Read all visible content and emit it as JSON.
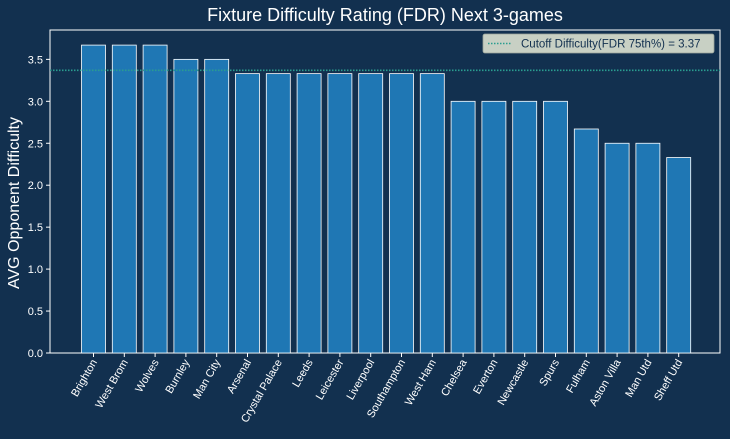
{
  "chart_data": {
    "type": "bar",
    "title": "Fixture Difficulty Rating (FDR) Next 3-games",
    "xlabel": "",
    "ylabel": "AVG Opponent Difficulty",
    "ylim": [
      0,
      3.85
    ],
    "yticks": [
      0.0,
      0.5,
      1.0,
      1.5,
      2.0,
      2.5,
      3.0,
      3.5
    ],
    "ytick_labels": [
      "0.0",
      "0.5",
      "1.0",
      "1.5",
      "2.0",
      "2.5",
      "3.0",
      "3.5"
    ],
    "grid": false,
    "categories": [
      "Brighton",
      "West Brom",
      "Wolves",
      "Burnley",
      "Man City",
      "Arsenal",
      "Crystal Palace",
      "Leeds",
      "Leicester",
      "Liverpool",
      "Southampton",
      "West Ham",
      "Chelsea",
      "Everton",
      "Newcastle",
      "Spurs",
      "Fulham",
      "Aston Villa",
      "Man Utd",
      "Sheff Utd"
    ],
    "values": [
      3.67,
      3.67,
      3.67,
      3.5,
      3.5,
      3.33,
      3.33,
      3.33,
      3.33,
      3.33,
      3.33,
      3.33,
      3.0,
      3.0,
      3.0,
      3.0,
      2.67,
      2.5,
      2.5,
      2.33
    ],
    "cutoff": {
      "value": 3.37,
      "label": "Cutoff Difficulty(FDR 75th%) = 3.37"
    },
    "legend_placement": "top-right",
    "colors": {
      "background": "#12304f",
      "bar_fill": "#1f77b4",
      "bar_edge": "#ffffff",
      "cutoff_line": "#2a9d8f",
      "axis": "#ffffff",
      "legend_bg": "#c8d0c4"
    }
  }
}
